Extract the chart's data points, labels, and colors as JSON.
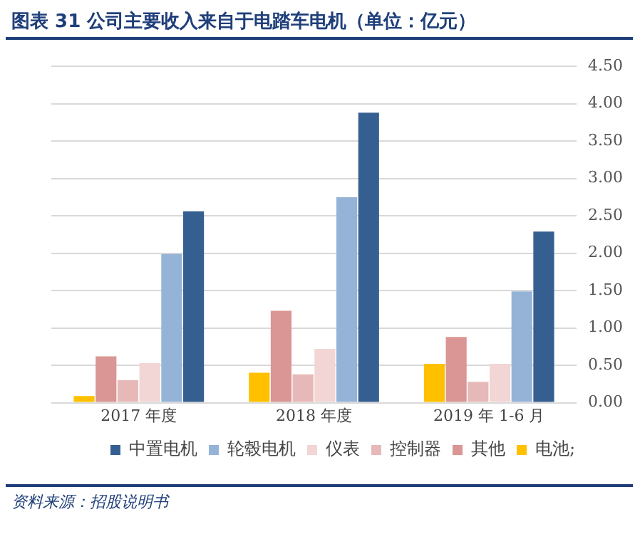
{
  "chart_data": {
    "type": "bar",
    "title": "图表 31 公司主要收入来自于电踏车电机（单位：亿元）",
    "categories": [
      "2017 年度",
      "2018 年度",
      "2019 年 1-6 月"
    ],
    "series": [
      {
        "name": "电池;",
        "color": "#ffc000",
        "values": [
          0.09,
          0.4,
          0.52
        ]
      },
      {
        "name": "其他",
        "color": "#d99694",
        "values": [
          0.62,
          1.23,
          0.88
        ]
      },
      {
        "name": "控制器",
        "color": "#e6b9b8",
        "values": [
          0.3,
          0.38,
          0.28
        ]
      },
      {
        "name": "仪表",
        "color": "#f2d5d5",
        "values": [
          0.53,
          0.72,
          0.52
        ]
      },
      {
        "name": "轮毂电机",
        "color": "#95b3d7",
        "values": [
          1.99,
          2.75,
          1.49
        ]
      },
      {
        "name": "中置电机",
        "color": "#365f91",
        "values": [
          2.56,
          3.88,
          2.29
        ]
      }
    ],
    "ylim": [
      0,
      4.5
    ],
    "yticks": [
      {
        "value": 0,
        "label": "0.00"
      },
      {
        "value": 0.5,
        "label": "0.50"
      },
      {
        "value": 1,
        "label": "1.00"
      },
      {
        "value": 1.5,
        "label": "1.50"
      },
      {
        "value": 2,
        "label": "2.00"
      },
      {
        "value": 2.5,
        "label": "2.50"
      },
      {
        "value": 3,
        "label": "3.00"
      },
      {
        "value": 3.5,
        "label": "3.50"
      },
      {
        "value": 4,
        "label": "4.00"
      },
      {
        "value": 4.5,
        "label": "4.50"
      }
    ],
    "grid": "y",
    "legend": "bottom",
    "annotations": [
      "资料来源：招股说明书"
    ]
  }
}
